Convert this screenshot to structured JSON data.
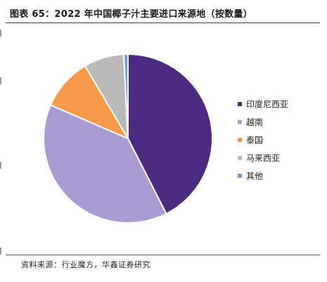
{
  "header": {
    "title": "图表 65：2022 年中国椰子汁主要进口来源地（按数量）"
  },
  "footer": {
    "source": "资料来源：行业魔方，华鑫证券研究"
  },
  "chart_data": {
    "type": "pie",
    "title": "图表 65：2022 年中国椰子汁主要进口来源地（按数量）",
    "legend_position": "right",
    "slices": [
      {
        "label": "印度尼西亚",
        "value": 42.5,
        "color": "#4c2a80"
      },
      {
        "label": "越南",
        "value": 39.0,
        "color": "#a89ad2"
      },
      {
        "label": "泰国",
        "value": 10.0,
        "color": "#f59a48"
      },
      {
        "label": "马来西亚",
        "value": 7.7,
        "color": "#bababa"
      },
      {
        "label": "其他",
        "value": 0.8,
        "color": "#6f9de8"
      }
    ]
  }
}
